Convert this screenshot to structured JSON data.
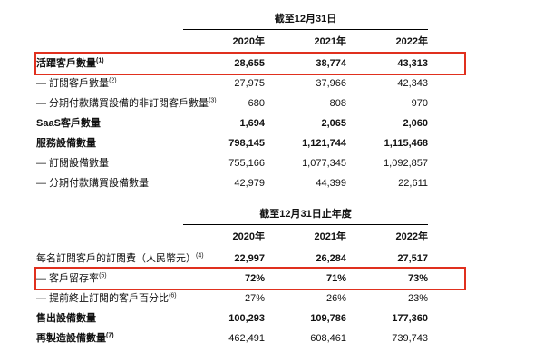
{
  "colors": {
    "highlight_border": "#e0301e",
    "text": "#111111",
    "background": "#ffffff",
    "rule": "#000000"
  },
  "table1": {
    "period_header": "截至12月31日",
    "years": [
      "2020年",
      "2021年",
      "2022年"
    ],
    "rows": [
      {
        "label": "活躍客戶數量",
        "sup": "(1)",
        "values": [
          "28,655",
          "38,774",
          "43,313"
        ],
        "label_bold": true,
        "values_bold": true,
        "highlight": true
      },
      {
        "label": "— 訂閱客戶數量",
        "sup": "(2)",
        "values": [
          "27,975",
          "37,966",
          "42,343"
        ],
        "label_bold": false,
        "values_bold": false,
        "highlight": false
      },
      {
        "label": "— 分期付款購買設備的非訂閱客戶數量",
        "sup": "(3)",
        "values": [
          "680",
          "808",
          "970"
        ],
        "label_bold": false,
        "values_bold": false,
        "highlight": false
      },
      {
        "label": "SaaS客戶數量",
        "sup": "",
        "values": [
          "1,694",
          "2,065",
          "2,060"
        ],
        "label_bold": true,
        "values_bold": true,
        "highlight": false
      },
      {
        "label": "服務設備數量",
        "sup": "",
        "values": [
          "798,145",
          "1,121,744",
          "1,115,468"
        ],
        "label_bold": true,
        "values_bold": true,
        "highlight": false
      },
      {
        "label": "— 訂閱設備數量",
        "sup": "",
        "values": [
          "755,166",
          "1,077,345",
          "1,092,857"
        ],
        "label_bold": false,
        "values_bold": false,
        "highlight": false
      },
      {
        "label": "— 分期付款購買設備數量",
        "sup": "",
        "values": [
          "42,979",
          "44,399",
          "22,611"
        ],
        "label_bold": false,
        "values_bold": false,
        "highlight": false
      }
    ]
  },
  "table2": {
    "period_header": "截至12月31日止年度",
    "years": [
      "2020年",
      "2021年",
      "2022年"
    ],
    "rows": [
      {
        "label": "每名訂閱客戶的訂閱費（人民幣元）",
        "sup": "(4)",
        "values": [
          "22,997",
          "26,284",
          "27,517"
        ],
        "label_bold": false,
        "values_bold": true,
        "highlight": false
      },
      {
        "label": "— 客戶留存率",
        "sup": "(5)",
        "values": [
          "72%",
          "71%",
          "73%"
        ],
        "label_bold": false,
        "values_bold": true,
        "highlight": true
      },
      {
        "label": "— 提前終止訂閱的客戶百分比",
        "sup": "(6)",
        "values": [
          "27%",
          "26%",
          "23%"
        ],
        "label_bold": false,
        "values_bold": false,
        "highlight": false
      },
      {
        "label": "售出設備數量",
        "sup": "",
        "values": [
          "100,293",
          "109,786",
          "177,360"
        ],
        "label_bold": true,
        "values_bold": true,
        "highlight": false
      },
      {
        "label": "再製造設備數量",
        "sup": "(7)",
        "values": [
          "462,491",
          "608,461",
          "739,743"
        ],
        "label_bold": true,
        "values_bold": false,
        "highlight": false
      }
    ]
  }
}
